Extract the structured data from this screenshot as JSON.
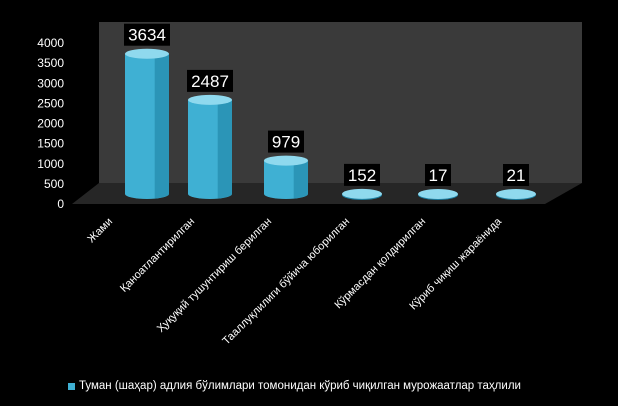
{
  "chart_data": {
    "type": "bar",
    "style": "3d-cylinder",
    "categories": [
      "Жами",
      "Қаноатлантирилган",
      "Ҳуқуқий тушунтириш берилган",
      "Тааллуқлилиги бўйича юборилган",
      "Кўрмасдан қолдирилган",
      "Кўриб чиқиш жараёнида"
    ],
    "series": [
      {
        "name": "Туман (шаҳар) адлия бўлимлари томонидан кўриб чиқилган мурожаатлар таҳлили",
        "values": [
          3634,
          2487,
          979,
          152,
          17,
          21
        ]
      }
    ],
    "data_labels": [
      "3634",
      "2487",
      "979",
      "152",
      "17",
      "21"
    ],
    "y_ticks": [
      "0",
      "500",
      "1000",
      "1500",
      "2000",
      "2500",
      "3000",
      "3500",
      "4000"
    ],
    "ylim": [
      0,
      4000
    ],
    "legend_position": "bottom",
    "colors": {
      "background": "#000000",
      "wall": "#3a3a3a",
      "floor": "#262626",
      "bar": "#3fb0d3",
      "bar_dark": "#1c7fa1",
      "bar_top": "#8fd9ee",
      "label_bg": "#000000",
      "label_text": "#ffffff",
      "axis_text": "#ffffff"
    }
  }
}
